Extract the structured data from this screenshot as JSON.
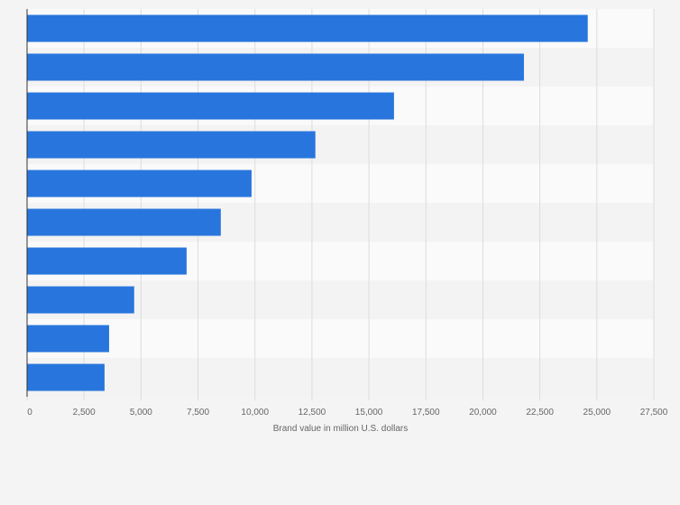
{
  "chart_data": {
    "type": "bar",
    "orientation": "horizontal",
    "categories": [
      "",
      "",
      "",
      "",
      "",
      "",
      "",
      "",
      "",
      ""
    ],
    "values": [
      24600,
      21800,
      16100,
      12650,
      9850,
      8500,
      7000,
      4700,
      3600,
      3400
    ],
    "title": "",
    "xlabel": "Brand value in million U.S. dollars",
    "ylabel": "",
    "xlim": [
      0,
      27500
    ],
    "xticks": [
      0,
      2500,
      5000,
      7500,
      10000,
      12500,
      15000,
      17500,
      20000,
      22500,
      25000,
      27500
    ],
    "xtick_labels": [
      "0",
      "2,500",
      "5,000",
      "7,500",
      "10,000",
      "12,500",
      "15,000",
      "17,500",
      "20,000",
      "22,500",
      "25,000",
      "27,500"
    ],
    "grid": true,
    "legend": "none",
    "colors": {
      "bar": "#2876dd",
      "background": "#f4f4f4",
      "plot_band_light": "#fafafa",
      "plot_band_dark": "#f3f3f3",
      "grid": "#dcdcdc",
      "axis": "#333333",
      "text": "#666666"
    }
  }
}
